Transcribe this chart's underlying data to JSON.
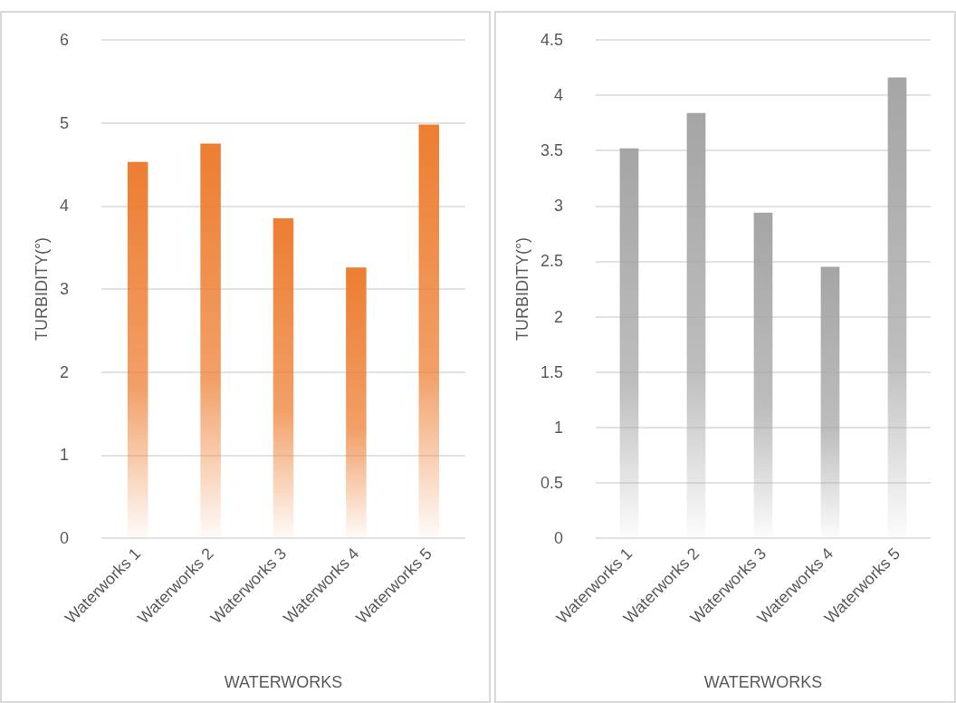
{
  "chart_data": [
    {
      "type": "bar",
      "xlabel": "WATERWORKS",
      "ylabel": "TURBIDITY(°)",
      "categories": [
        "Waterworks 1",
        "Waterworks 2",
        "Waterworks 3",
        "Waterworks 4",
        "Waterworks 5"
      ],
      "values": [
        4.53,
        4.75,
        3.85,
        3.26,
        4.98
      ],
      "color": "#ed7d31",
      "ylim": [
        0,
        6
      ],
      "yticks": [
        0,
        1,
        2,
        3,
        4,
        5,
        6
      ],
      "grid": "y"
    },
    {
      "type": "bar",
      "xlabel": "WATERWORKS",
      "ylabel": "TURBIDITY(°)",
      "categories": [
        "Waterworks 1",
        "Waterworks 2",
        "Waterworks 3",
        "Waterworks 4",
        "Waterworks 5"
      ],
      "values": [
        3.52,
        3.84,
        2.94,
        2.45,
        4.16
      ],
      "color": "#a5a5a5",
      "ylim": [
        0,
        4.5
      ],
      "yticks": [
        0,
        0.5,
        1,
        1.5,
        2,
        2.5,
        3,
        3.5,
        4,
        4.5
      ],
      "grid": "y"
    }
  ]
}
